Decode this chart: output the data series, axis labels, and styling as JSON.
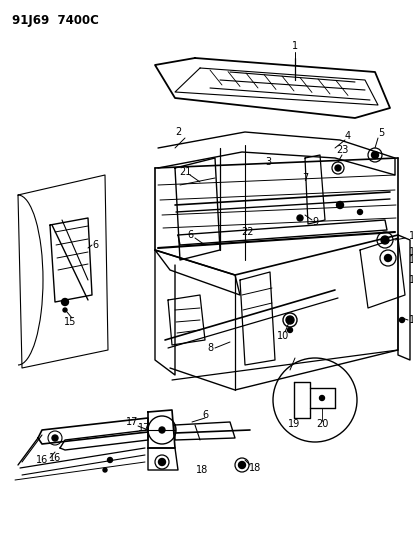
{
  "title_code": "91J69  7400C",
  "bg_color": "#ffffff",
  "line_color": "#000000",
  "figsize": [
    4.14,
    5.33
  ],
  "dpi": 100,
  "image_b64": ""
}
